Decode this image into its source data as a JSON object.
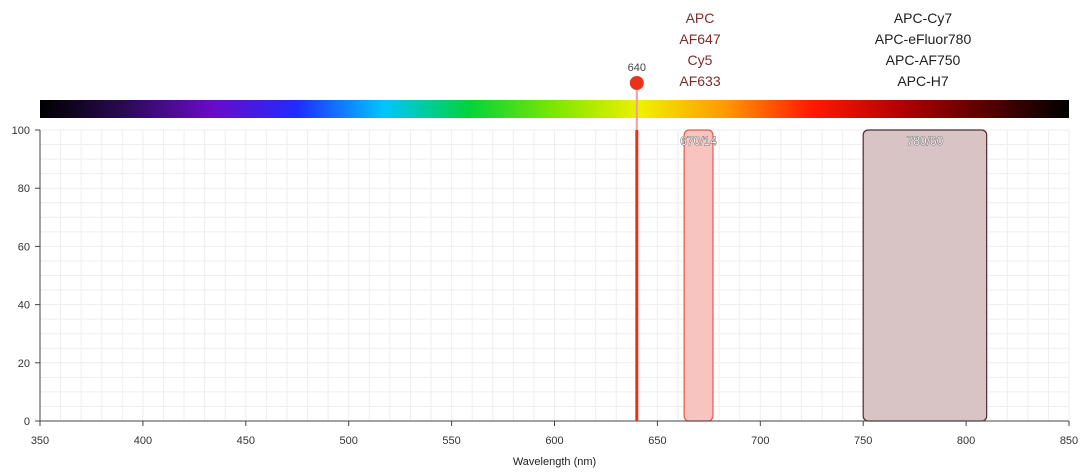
{
  "chart_data": {
    "type": "area",
    "x_axis": {
      "min": 350,
      "max": 850,
      "step": 50,
      "ticks": [
        350,
        400,
        450,
        500,
        550,
        600,
        650,
        700,
        750,
        800,
        850
      ],
      "label": "Wavelength (nm)"
    },
    "y_axis": {
      "min": 0,
      "max": 100,
      "step": 20,
      "ticks": [
        0,
        20,
        40,
        60,
        80,
        100
      ]
    },
    "grid": true,
    "laser": {
      "wavelength": 640,
      "label": "640",
      "color": "#e8331c"
    },
    "filters": [
      {
        "label": "670/14",
        "center": 670,
        "width": 14,
        "min": 663,
        "max": 677,
        "transmission": 100,
        "fill": "#f7c4bf",
        "stroke": "#e55a4f"
      },
      {
        "label": "780/60",
        "center": 780,
        "width": 60,
        "min": 750,
        "max": 810,
        "transmission": 100,
        "fill": "#d8c4c5",
        "stroke": "#4b2f30"
      }
    ],
    "fluorochrome_groups": [
      {
        "labels": [
          "APC",
          "AF647",
          "Cy5",
          "AF633"
        ],
        "color": "#7d2c2a"
      },
      {
        "labels": [
          "APC-Cy7",
          "APC-eFluor780",
          "APC-AF750",
          "APC-H7"
        ],
        "color": "#1e1e1e"
      }
    ]
  },
  "colors": {
    "spectrum_stops": [
      "#000000",
      "#2b0a55",
      "#6a0ac8",
      "#1f2cff",
      "#00c4ff",
      "#00d43a",
      "#7ee600",
      "#f0f000",
      "#ff9800",
      "#ff1a00",
      "#b80000",
      "#5a0000",
      "#000000"
    ],
    "grid": "#eeeeee",
    "axis": "#444444"
  }
}
